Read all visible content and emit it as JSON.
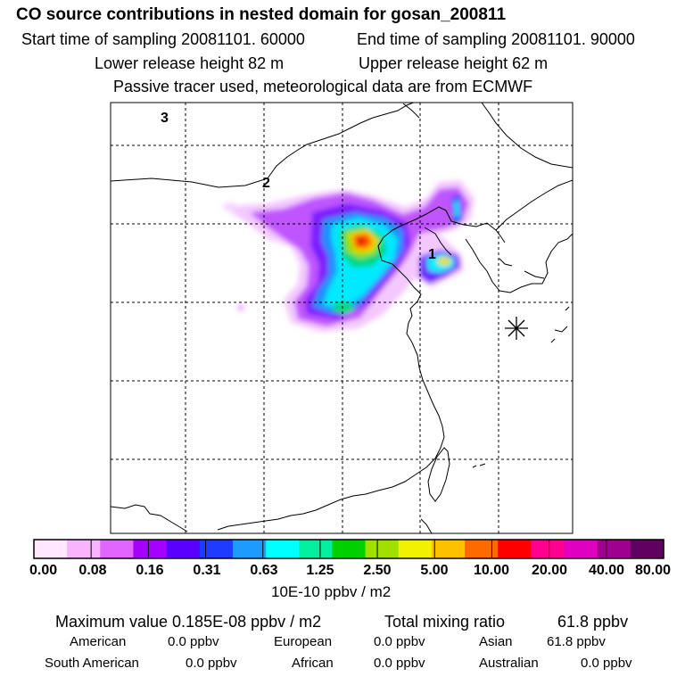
{
  "header": {
    "title": "CO  source contributions in nested domain for gosan_200811",
    "start_label": "Start time of sampling 20081101. 60000",
    "end_label": "End time of sampling 20081101. 90000",
    "lower_label": "Lower release height   82 m",
    "upper_label": "Upper release height   62 m",
    "tracer_label": "Passive tracer used, meteorological data are from ECMWF"
  },
  "map": {
    "markers": [
      "1",
      "2",
      "3"
    ],
    "receptor_icon": "asterisk-icon"
  },
  "colorbar": {
    "labels": [
      "0.00",
      "0.08",
      "0.16",
      "0.31",
      "0.63",
      "1.25",
      "2.50",
      "5.00",
      "10.00",
      "20.00",
      "40.00",
      "80.00"
    ],
    "units": "10E-10 ppbv / m2",
    "colors": [
      "#ffe6ff",
      "#f9b3ff",
      "#e066ff",
      "#a600ff",
      "#5a00ff",
      "#1e3cff",
      "#1e9bff",
      "#00ffff",
      "#00f0a0",
      "#00d000",
      "#a0e000",
      "#f0f000",
      "#ffc000",
      "#ff6a00",
      "#ff0000",
      "#ff0090",
      "#e000c0",
      "#a00090",
      "#600060"
    ]
  },
  "stats": {
    "max_label": "Maximum value  0.185E-08 ppbv / m2",
    "total_label": "Total mixing ratio",
    "total_value": "61.8 ppbv"
  },
  "regions": [
    {
      "name": "American",
      "value": "0.0 ppbv"
    },
    {
      "name": "European",
      "value": "0.0 ppbv"
    },
    {
      "name": "Asian",
      "value": "61.8 ppbv"
    },
    {
      "name": "South American",
      "value": "0.0 ppbv"
    },
    {
      "name": "African",
      "value": "0.0 ppbv"
    },
    {
      "name": "Australian",
      "value": "0.0 ppbv"
    }
  ]
}
